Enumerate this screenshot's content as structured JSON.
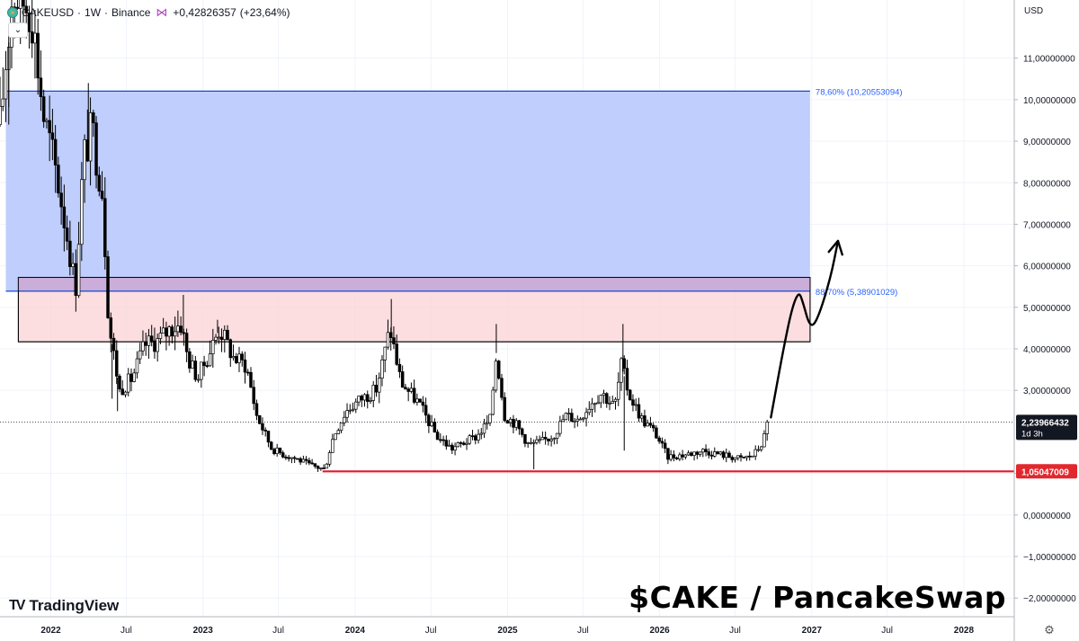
{
  "header": {
    "symbol": "CAKEUSD",
    "interval": "1W",
    "exchange": "Binance",
    "change_abs": "+0,42826357",
    "change_pct": "(+23,64%)"
  },
  "currency": "USD",
  "brand": "TradingView",
  "watermark_title": "$CAKE / PancakeSwap",
  "colors": {
    "up": "#ffffff",
    "down": "#000000",
    "fib_zone": "#bccbfc",
    "fib_line": "#1848cc",
    "supply_zone": "#fbd3d6",
    "support_line": "#e01a2b",
    "label_dark": "#131722",
    "label_red": "#e0282e",
    "fib_label": "#2962ff"
  },
  "chart_data": {
    "type": "candlestick",
    "y_unit": "USD",
    "ylim": [
      -2.45,
      12.4
    ],
    "xlim": [
      "2021-09",
      "2028-05"
    ],
    "grid": true,
    "y_ticks": [
      {
        "value": 11,
        "label": "11,00000000"
      },
      {
        "value": 10,
        "label": "10,00000000"
      },
      {
        "value": 9,
        "label": "9,00000000"
      },
      {
        "value": 8,
        "label": "8,00000000"
      },
      {
        "value": 7,
        "label": "7,00000000"
      },
      {
        "value": 6,
        "label": "6,00000000"
      },
      {
        "value": 5,
        "label": "5,00000000"
      },
      {
        "value": 4,
        "label": "4,00000000"
      },
      {
        "value": 3,
        "label": "3,00000000"
      },
      {
        "value": 1,
        "label": "1,00000000"
      },
      {
        "value": 0,
        "label": "0,00000000"
      },
      {
        "value": -1,
        "label": "−1,00000000"
      },
      {
        "value": -2,
        "label": "−2,00000000"
      }
    ],
    "x_ticks": [
      {
        "date": "2022-01",
        "label": "2022",
        "bold": true
      },
      {
        "date": "2022-07",
        "label": "Jul",
        "bold": false
      },
      {
        "date": "2023-01",
        "label": "2023",
        "bold": true
      },
      {
        "date": "2023-07",
        "label": "Jul",
        "bold": false
      },
      {
        "date": "2024-01",
        "label": "2024",
        "bold": true
      },
      {
        "date": "2024-07",
        "label": "Jul",
        "bold": false
      },
      {
        "date": "2025-01",
        "label": "2025",
        "bold": true
      },
      {
        "date": "2025-07",
        "label": "Jul",
        "bold": false
      },
      {
        "date": "2026-01",
        "label": "2026",
        "bold": true
      },
      {
        "date": "2026-07",
        "label": "Jul",
        "bold": false
      },
      {
        "date": "2027-01",
        "label": "2027",
        "bold": true
      },
      {
        "date": "2027-07",
        "label": "Jul",
        "bold": false
      },
      {
        "date": "2028-01",
        "label": "2028",
        "bold": true
      }
    ],
    "price_path": [
      [
        "2021-09-01",
        9.4
      ],
      [
        "2021-10-01",
        12.6
      ],
      [
        "2021-11-15",
        12.2
      ],
      [
        "2021-12-15",
        9.6
      ],
      [
        "2022-01-15",
        8.2
      ],
      [
        "2022-02-15",
        6.4
      ],
      [
        "2022-03-01",
        5.4
      ],
      [
        "2022-03-20",
        8.6
      ],
      [
        "2022-04-10",
        9.3
      ],
      [
        "2022-05-05",
        7.8
      ],
      [
        "2022-05-20",
        4.6
      ],
      [
        "2022-06-15",
        3.0
      ],
      [
        "2022-07-15",
        3.3
      ],
      [
        "2022-08-15",
        4.1
      ],
      [
        "2022-09-15",
        4.2
      ],
      [
        "2022-10-15",
        4.5
      ],
      [
        "2022-11-10",
        4.6
      ],
      [
        "2022-11-25",
        3.8
      ],
      [
        "2022-12-20",
        3.3
      ],
      [
        "2023-01-20",
        4.0
      ],
      [
        "2023-02-10",
        4.5
      ],
      [
        "2023-03-15",
        3.8
      ],
      [
        "2023-04-15",
        3.6
      ],
      [
        "2023-05-10",
        2.4
      ],
      [
        "2023-06-15",
        1.6
      ],
      [
        "2023-07-15",
        1.45
      ],
      [
        "2023-08-15",
        1.35
      ],
      [
        "2023-09-15",
        1.2
      ],
      [
        "2023-10-20",
        1.1
      ],
      [
        "2023-11-10",
        1.9
      ],
      [
        "2023-12-10",
        2.5
      ],
      [
        "2024-01-15",
        2.8
      ],
      [
        "2024-02-20",
        3.0
      ],
      [
        "2024-03-10",
        3.8
      ],
      [
        "2024-03-25",
        4.5
      ],
      [
        "2024-04-20",
        3.2
      ],
      [
        "2024-06-01",
        2.7
      ],
      [
        "2024-07-15",
        1.9
      ],
      [
        "2024-08-20",
        1.6
      ],
      [
        "2024-09-20",
        1.75
      ],
      [
        "2024-10-20",
        1.9
      ],
      [
        "2024-11-20",
        2.3
      ],
      [
        "2024-12-05",
        3.9
      ],
      [
        "2024-12-25",
        2.4
      ],
      [
        "2025-01-20",
        2.2
      ],
      [
        "2025-02-20",
        1.7
      ],
      [
        "2025-03-20",
        1.75
      ],
      [
        "2025-04-20",
        1.9
      ],
      [
        "2025-05-20",
        2.4
      ],
      [
        "2025-06-20",
        2.3
      ],
      [
        "2025-07-20",
        2.7
      ],
      [
        "2025-08-15",
        2.95
      ],
      [
        "2025-09-15",
        2.6
      ],
      [
        "2025-10-01",
        3.6
      ],
      [
        "2025-10-20",
        2.9
      ],
      [
        "2025-11-20",
        2.3
      ],
      [
        "2025-12-20",
        2.0
      ],
      [
        "2026-01-20",
        1.4
      ],
      [
        "2026-03-01",
        1.45
      ],
      [
        "2026-04-15",
        1.55
      ],
      [
        "2026-06-01",
        1.45
      ],
      [
        "2026-07-15",
        1.35
      ],
      [
        "2026-08-15",
        1.45
      ],
      [
        "2026-09-05",
        1.75
      ],
      [
        "2026-09-20",
        2.24
      ]
    ],
    "spikes": [
      {
        "date": "2021-09-22",
        "value": 9.4
      },
      {
        "date": "2022-04-01",
        "value": 10.4
      },
      {
        "date": "2022-05-28",
        "value": 2.8
      },
      {
        "date": "2022-06-10",
        "value": 2.5
      },
      {
        "date": "2022-11-15",
        "value": 5.3
      },
      {
        "date": "2023-02-05",
        "value": 4.7
      },
      {
        "date": "2024-03-28",
        "value": 5.2
      },
      {
        "date": "2024-12-05",
        "value": 4.6
      },
      {
        "date": "2025-03-05",
        "value": 1.1
      },
      {
        "date": "2025-10-05",
        "value": 4.6
      },
      {
        "date": "2025-10-08",
        "value": 1.55
      }
    ],
    "fib_zone": {
      "top": 10.20553094,
      "bottom": 5.38901029,
      "start": "2021-09-15",
      "end": "2026-12-28"
    },
    "fib_levels": [
      {
        "ratio": "78,60%",
        "value": 10.20553094,
        "label": "78,60% (10,20553094)"
      },
      {
        "ratio": "88,70%",
        "value": 5.38901029,
        "label": "88,70% (5,38901029)"
      }
    ],
    "supply_zone": {
      "top": 5.72,
      "bottom": 4.17,
      "start": "2021-10-15",
      "end": "2026-12-28"
    },
    "support": {
      "value": 1.05047009,
      "start": "2023-10-15",
      "label": "1,05047009"
    },
    "last_price": {
      "value": 2.23966432,
      "label": "2,23966432",
      "countdown": "1d 3h"
    },
    "projection": [
      [
        "2026-09-25",
        2.35
      ],
      [
        "2026-10-25",
        4.0
      ],
      [
        "2026-11-15",
        5.0
      ],
      [
        "2026-12-01",
        5.38
      ],
      [
        "2026-12-10",
        5.15
      ],
      [
        "2026-12-28",
        4.5
      ],
      [
        "2027-01-15",
        4.7
      ],
      [
        "2027-02-15",
        5.7
      ],
      [
        "2027-03-05",
        6.6
      ]
    ]
  }
}
